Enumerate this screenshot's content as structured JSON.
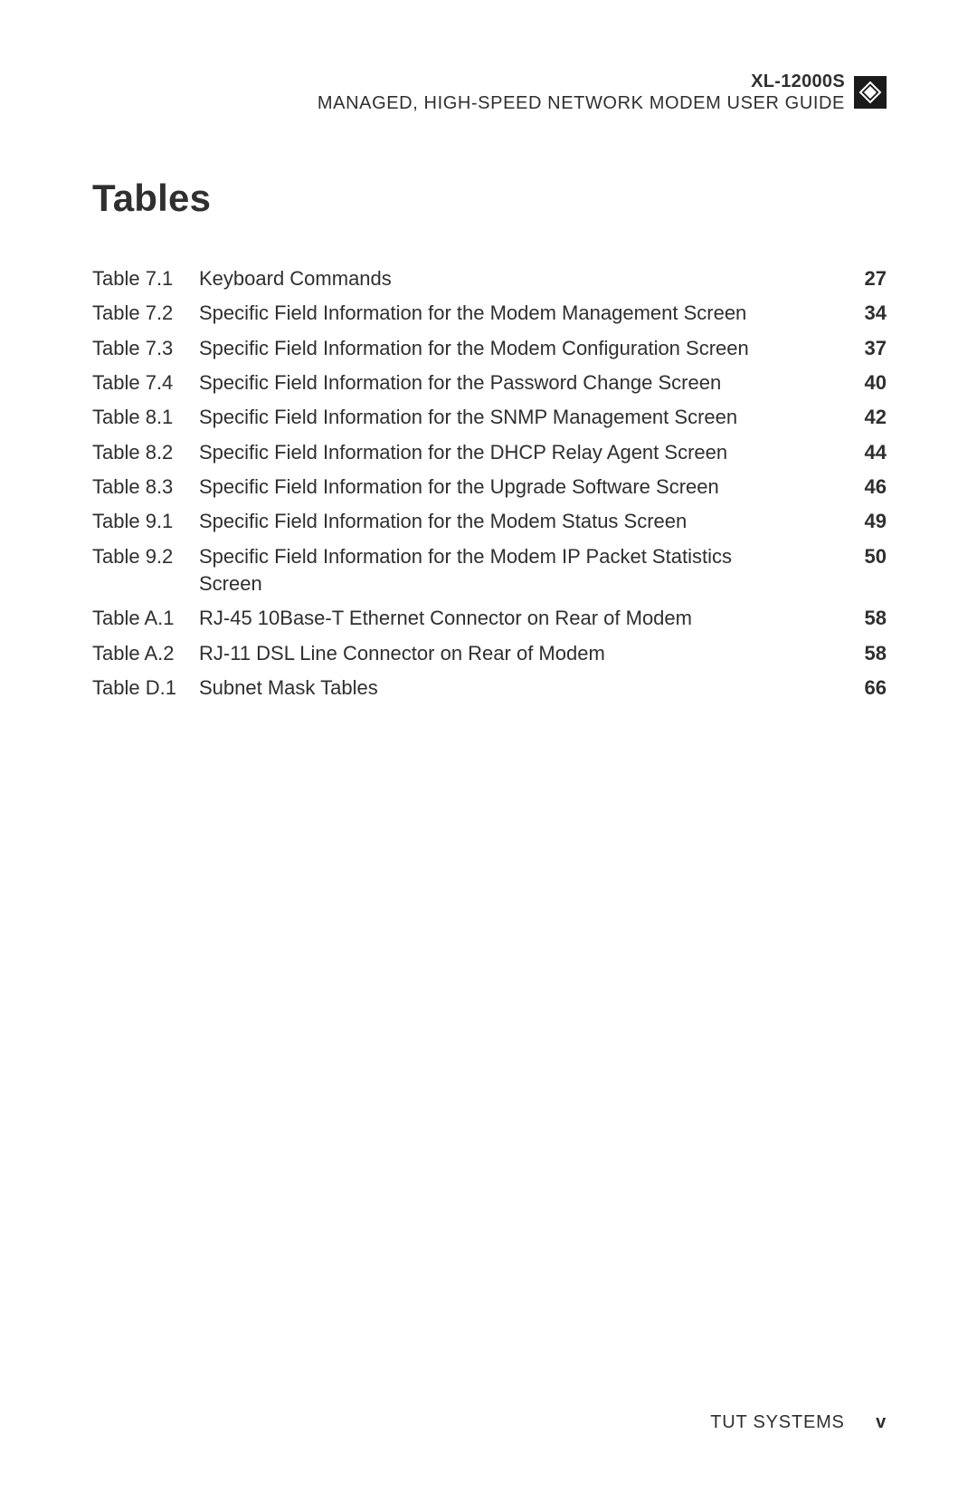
{
  "header": {
    "model": "XL-12000S",
    "subtitle": "MANAGED, HIGH-SPEED NETWORK MODEM USER GUIDE",
    "icon_name": "diamond-logo-icon",
    "icon_bg": "#1b1b1b",
    "icon_fg": "#ffffff"
  },
  "section_title": "Tables",
  "toc": [
    {
      "label": "Table 7.1",
      "title": "Keyboard Commands",
      "page": "27"
    },
    {
      "label": "Table 7.2",
      "title": "Specific Field Information for the Modem Management Screen",
      "page": "34"
    },
    {
      "label": "Table 7.3",
      "title": "Specific Field Information for the Modem Configuration Screen",
      "page": "37"
    },
    {
      "label": "Table 7.4",
      "title": "Specific Field Information for the Password Change Screen",
      "page": "40"
    },
    {
      "label": "Table 8.1",
      "title": "Specific Field Information for the SNMP Management Screen",
      "page": "42"
    },
    {
      "label": "Table 8.2",
      "title": "Specific Field Information for the DHCP Relay Agent Screen",
      "page": "44"
    },
    {
      "label": "Table 8.3",
      "title": "Specific Field Information for the Upgrade Software Screen",
      "page": "46"
    },
    {
      "label": "Table 9.1",
      "title": "Specific Field Information for the Modem Status Screen",
      "page": "49"
    },
    {
      "label": "Table 9.2",
      "title": "Specific Field Information for the Modem IP Packet Statistics Screen",
      "page": "50"
    },
    {
      "label": "Table A.1",
      "title": "RJ-45 10Base-T Ethernet Connector on Rear of Modem",
      "page": "58"
    },
    {
      "label": "Table A.2",
      "title": "RJ-11 DSL Line Connector on Rear of Modem",
      "page": "58"
    },
    {
      "label": "Table D.1",
      "title": "Subnet Mask Tables",
      "page": "66"
    }
  ],
  "footer": {
    "company": "TUT SYSTEMS",
    "page_number": "v"
  },
  "colors": {
    "text": "#2f2f2f",
    "background": "#ffffff"
  },
  "typography": {
    "body_font": "Helvetica/Arial",
    "title_size_pt": 32,
    "row_size_pt": 16,
    "header_size_pt": 15
  }
}
